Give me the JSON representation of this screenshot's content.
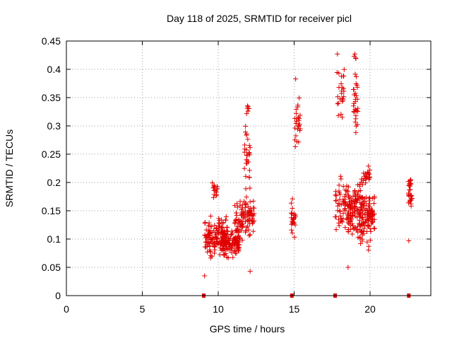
{
  "chart_data": {
    "type": "scatter",
    "title": "Day 118 of 2025, SRMTID for receiver picl",
    "xlabel": "GPS time / hours",
    "ylabel": "SRMTID / TECUs",
    "xlim": [
      0,
      24
    ],
    "ylim": [
      0,
      0.45
    ],
    "x_ticks": [
      "0",
      "5",
      "10",
      "15",
      "20"
    ],
    "y_ticks": [
      "0",
      "0.05",
      "0.1",
      "0.15",
      "0.2",
      "0.25",
      "0.3",
      "0.35",
      "0.4",
      "0.45"
    ],
    "grid": true,
    "legend": "none",
    "colors": {
      "series": "#e00000",
      "grid": "#a0a0a0",
      "axis": "#000000"
    },
    "marker": "plus",
    "clusters": [
      {
        "x_range": [
          9.1,
          10.6
        ],
        "y_center": 0.105,
        "y_spread": 0.035,
        "count": 150
      },
      {
        "x_range": [
          9.6,
          10.0
        ],
        "y_center": 0.185,
        "y_spread": 0.02,
        "count": 15
      },
      {
        "x_range": [
          10.3,
          11.4
        ],
        "y_center": 0.09,
        "y_spread": 0.025,
        "count": 90
      },
      {
        "x_range": [
          11.0,
          12.4
        ],
        "y_center": 0.135,
        "y_spread": 0.035,
        "count": 100
      },
      {
        "x_range": [
          11.7,
          12.1
        ],
        "y_center": 0.24,
        "y_spread": 0.06,
        "count": 30
      },
      {
        "x_range": [
          11.85,
          12.05
        ],
        "y_center": 0.33,
        "y_spread": 0.02,
        "count": 6
      },
      {
        "x_range": [
          14.8,
          15.1
        ],
        "y_center": 0.13,
        "y_spread": 0.04,
        "count": 25
      },
      {
        "x_range": [
          15.0,
          15.4
        ],
        "y_center": 0.3,
        "y_spread": 0.05,
        "count": 25
      },
      {
        "x_range": [
          17.7,
          18.6
        ],
        "y_center": 0.16,
        "y_spread": 0.05,
        "count": 60
      },
      {
        "x_range": [
          17.8,
          18.3
        ],
        "y_center": 0.36,
        "y_spread": 0.04,
        "count": 25
      },
      {
        "x_range": [
          18.5,
          19.5
        ],
        "y_center": 0.15,
        "y_spread": 0.05,
        "count": 110
      },
      {
        "x_range": [
          18.9,
          19.2
        ],
        "y_center": 0.33,
        "y_spread": 0.08,
        "count": 30
      },
      {
        "x_range": [
          19.3,
          20.3
        ],
        "y_center": 0.14,
        "y_spread": 0.045,
        "count": 110
      },
      {
        "x_range": [
          19.5,
          20.0
        ],
        "y_center": 0.21,
        "y_spread": 0.02,
        "count": 20
      },
      {
        "x_range": [
          22.5,
          22.8
        ],
        "y_center": 0.18,
        "y_spread": 0.03,
        "count": 30
      }
    ],
    "extra_points": [
      [
        17.85,
        0.427
      ],
      [
        19.0,
        0.427
      ],
      [
        19.05,
        0.42
      ],
      [
        22.55,
        0.097
      ],
      [
        12.1,
        0.043
      ],
      [
        9.1,
        0.035
      ],
      [
        18.55,
        0.05
      ],
      [
        15.1,
        0.383
      ]
    ],
    "zero_markers_x": [
      9.05,
      14.85,
      17.7,
      22.55
    ]
  }
}
